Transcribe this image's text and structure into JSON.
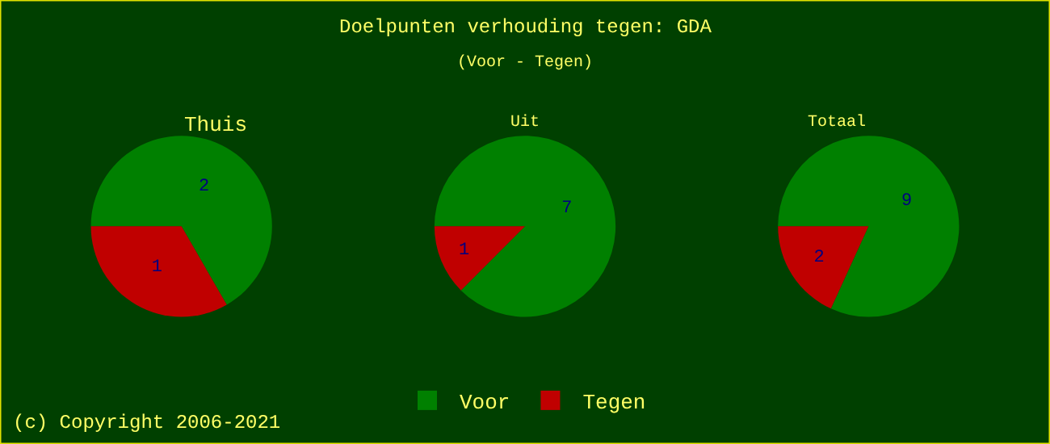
{
  "chart_data": [
    {
      "type": "pie",
      "title": "Thuis",
      "categories": [
        "Voor",
        "Tegen"
      ],
      "values": [
        2,
        1
      ],
      "colors": [
        "#008000",
        "#c00000"
      ],
      "data_labels": true,
      "legend": "bottom",
      "annotations": [
        "Doelpunten verhouding tegen: GDA",
        "(Voor - Tegen)",
        "(c) Copyright 2006-2021"
      ]
    },
    {
      "type": "pie",
      "title": "Uit",
      "categories": [
        null,
        null
      ],
      "values": [
        7,
        1
      ],
      "colors": [
        "#008000",
        "#c00000"
      ],
      "data_labels": true
    },
    {
      "type": "pie",
      "title": "Totaal",
      "categories": [
        null,
        null
      ],
      "values": [
        9,
        2
      ],
      "colors": [
        "#008000",
        "#c00000"
      ],
      "data_labels": true
    }
  ]
}
